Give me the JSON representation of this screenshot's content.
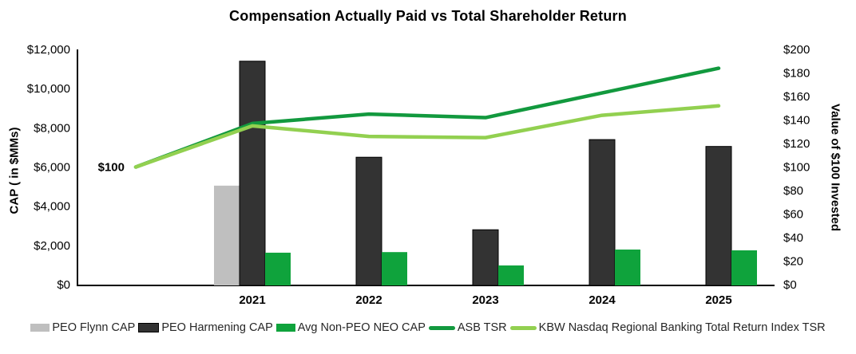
{
  "chart_data": {
    "type": "combo-bar-line",
    "title": "Compensation Actually Paid vs Total Shareholder Return",
    "categories": [
      "",
      "2021",
      "2022",
      "2023",
      "2024",
      "2025"
    ],
    "series": [
      {
        "name": "PEO Flynn CAP",
        "type": "bar",
        "axis": "left",
        "color": "#bfbfbf",
        "border": null,
        "values": [
          null,
          5050,
          null,
          null,
          null,
          null
        ]
      },
      {
        "name": "PEO Harmening CAP",
        "type": "bar",
        "axis": "left",
        "color": "#333333",
        "border": "#000000",
        "values": [
          null,
          11400,
          6500,
          2800,
          7400,
          7050
        ]
      },
      {
        "name": "Avg Non-PEO NEO CAP",
        "type": "bar",
        "axis": "left",
        "color": "#0fa33c",
        "border": null,
        "values": [
          null,
          1630,
          1660,
          980,
          1790,
          1750
        ]
      },
      {
        "name": "ASB TSR",
        "type": "line",
        "axis": "right",
        "color": "#12993e",
        "border": null,
        "values": [
          100,
          137,
          145,
          142,
          163,
          184
        ]
      },
      {
        "name": "KBW Nasdaq Regional Banking Total Return Index TSR",
        "type": "line",
        "axis": "right",
        "color": "#92d050",
        "border": null,
        "values": [
          100,
          135,
          126,
          125,
          144,
          152
        ]
      }
    ],
    "left_axis": {
      "label": "CAP ( in $MMs)",
      "min": 0,
      "max": 12000,
      "step": 2000,
      "tick_format": "$#,##0"
    },
    "right_axis": {
      "label": "Value of $100 Invested",
      "min": 0,
      "max": 200,
      "step": 20,
      "tick_format": "$#,##0"
    },
    "annotation": {
      "text": "$100",
      "category_index": 0,
      "value": 100,
      "axis": "right"
    },
    "grid": false,
    "legend_position": "bottom"
  }
}
